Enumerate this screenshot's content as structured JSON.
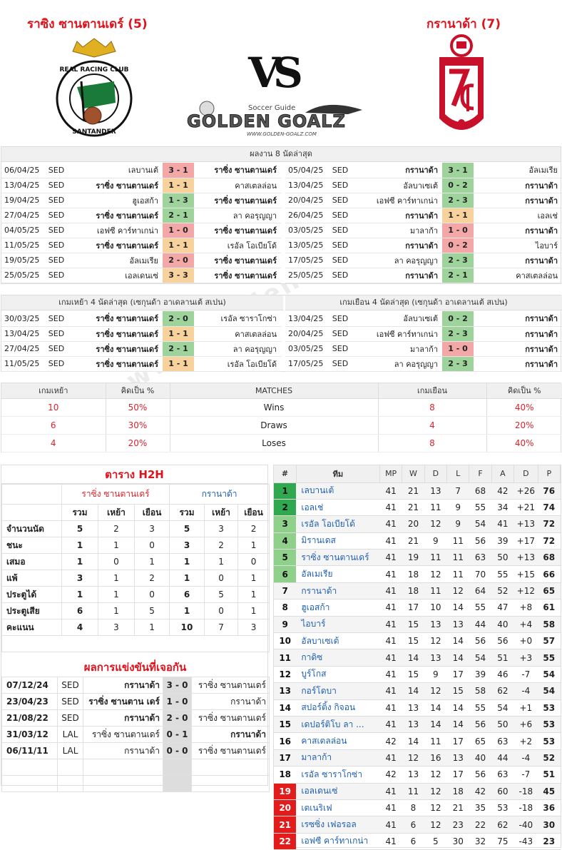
{
  "header": {
    "home": "ราซิง ซานตานเดร์ (5)",
    "away": "กรานาด้า (7)",
    "vs": "VS",
    "logo_small": "Soccer Guide",
    "logo_big": "GOLDEN GOALZ",
    "logo_url": "WWW.GOLDEN-GOALZ.COM",
    "crest_home_text": "REAL RACING CLUB",
    "crest_home_sub": "SANTANDER"
  },
  "last8": {
    "title": "ผลงาน 8 นัดล่าสุด",
    "home": [
      {
        "d": "06/04/25",
        "c": "SED",
        "h": "เลบานเต้",
        "s": "3 - 1",
        "a": "ราซิ่ง ซานตานเดร์",
        "hb": false,
        "ab": true,
        "cl": "r"
      },
      {
        "d": "13/04/25",
        "c": "SED",
        "h": "ราซิ่ง ซานตานเดร์",
        "s": "1 - 1",
        "a": "คาสเตลล่อน",
        "hb": true,
        "ab": false,
        "cl": "o"
      },
      {
        "d": "19/04/25",
        "c": "SED",
        "h": "ฮูเอสก้า",
        "s": "1 - 3",
        "a": "ราซิ่ง ซานตานเดร์",
        "hb": false,
        "ab": true,
        "cl": "g"
      },
      {
        "d": "27/04/25",
        "c": "SED",
        "h": "ราซิ่ง ซานตานเดร์",
        "s": "2 - 1",
        "a": "ลา คอรุญญา",
        "hb": true,
        "ab": false,
        "cl": "g"
      },
      {
        "d": "04/05/25",
        "c": "SED",
        "h": "เอฟซี คาร์ทาเกน่า",
        "s": "1 - 0",
        "a": "ราซิ่ง ซานตานเดร์",
        "hb": false,
        "ab": true,
        "cl": "r"
      },
      {
        "d": "11/05/25",
        "c": "SED",
        "h": "ราซิ่ง ซานตานเดร์",
        "s": "1 - 1",
        "a": "เรอัล โอเบียโด้",
        "hb": true,
        "ab": false,
        "cl": "o"
      },
      {
        "d": "19/05/25",
        "c": "SED",
        "h": "อัลเมเรีย",
        "s": "2 - 0",
        "a": "ราซิ่ง ซานตานเดร์",
        "hb": false,
        "ab": true,
        "cl": "r"
      },
      {
        "d": "25/05/25",
        "c": "SED",
        "h": "เอลเดนเซ่",
        "s": "3 - 3",
        "a": "ราซิ่ง ซานตานเดร์",
        "hb": false,
        "ab": true,
        "cl": "o"
      }
    ],
    "away": [
      {
        "d": "05/04/25",
        "c": "SED",
        "h": "กรานาด้า",
        "s": "3 - 1",
        "a": "อัลเมเรีย",
        "hb": true,
        "ab": false,
        "cl": "g"
      },
      {
        "d": "13/04/25",
        "c": "SED",
        "h": "อัลบาเซเต้",
        "s": "0 - 2",
        "a": "กรานาด้า",
        "hb": false,
        "ab": true,
        "cl": "g"
      },
      {
        "d": "20/04/25",
        "c": "SED",
        "h": "เอฟซี คาร์ทาเกน่า",
        "s": "2 - 3",
        "a": "กรานาด้า",
        "hb": false,
        "ab": true,
        "cl": "g"
      },
      {
        "d": "26/04/25",
        "c": "SED",
        "h": "กรานาด้า",
        "s": "1 - 1",
        "a": "เอลเช่",
        "hb": true,
        "ab": false,
        "cl": "o"
      },
      {
        "d": "03/05/25",
        "c": "SED",
        "h": "มาลาก้า",
        "s": "1 - 0",
        "a": "กรานาด้า",
        "hb": false,
        "ab": true,
        "cl": "r"
      },
      {
        "d": "13/05/25",
        "c": "SED",
        "h": "กรานาด้า",
        "s": "0 - 2",
        "a": "ไอบาร์",
        "hb": true,
        "ab": false,
        "cl": "r"
      },
      {
        "d": "17/05/25",
        "c": "SED",
        "h": "ลา คอรุญญา",
        "s": "2 - 3",
        "a": "กรานาด้า",
        "hb": false,
        "ab": true,
        "cl": "g"
      },
      {
        "d": "25/05/25",
        "c": "SED",
        "h": "กรานาด้า",
        "s": "2 - 1",
        "a": "คาสเตลล่อน",
        "hb": true,
        "ab": false,
        "cl": "g"
      }
    ]
  },
  "last4": {
    "home_title": "เกมเหย้า 4 นัดล่าสุด (เซกุนด้า อาเดลานเต้ สเปน)",
    "away_title": "เกมเยือน 4 นัดล่าสุด (เซกุนด้า อาเดลานเต้ สเปน)",
    "home": [
      {
        "d": "30/03/25",
        "c": "SED",
        "h": "ราซิ่ง ซานตานเดร์",
        "s": "2 - 0",
        "a": "เรอัล ซาราโกซ่า",
        "cl": "g"
      },
      {
        "d": "13/04/25",
        "c": "SED",
        "h": "ราซิ่ง ซานตานเดร์",
        "s": "1 - 1",
        "a": "คาสเตลล่อน",
        "cl": "o"
      },
      {
        "d": "27/04/25",
        "c": "SED",
        "h": "ราซิ่ง ซานตานเดร์",
        "s": "2 - 1",
        "a": "ลา คอรุญญา",
        "cl": "g"
      },
      {
        "d": "11/05/25",
        "c": "SED",
        "h": "ราซิ่ง ซานตานเดร์",
        "s": "1 - 1",
        "a": "เรอัล โอเบียโด้",
        "cl": "o"
      }
    ],
    "away": [
      {
        "d": "13/04/25",
        "c": "SED",
        "h": "อัลบาเซเต้",
        "s": "0 - 2",
        "a": "กรานาด้า",
        "cl": "g"
      },
      {
        "d": "20/04/25",
        "c": "SED",
        "h": "เอฟซี คาร์ทาเกน่า",
        "s": "2 - 3",
        "a": "กรานาด้า",
        "cl": "g"
      },
      {
        "d": "03/05/25",
        "c": "SED",
        "h": "มาลาก้า",
        "s": "1 - 0",
        "a": "กรานาด้า",
        "cl": "r"
      },
      {
        "d": "17/05/25",
        "c": "SED",
        "h": "ลา คอรุญญา",
        "s": "2 - 3",
        "a": "กรานาด้า",
        "cl": "g"
      }
    ]
  },
  "stats": {
    "h1": "เกมเหย้า",
    "h2": "คิดเป็น %",
    "h3": "MATCHES",
    "h4": "เกมเยือน",
    "h5": "คิดเป็น %",
    "rows": [
      {
        "hv": "10",
        "hp": "50%",
        "label": "Wins",
        "av": "8",
        "ap": "40%"
      },
      {
        "hv": "6",
        "hp": "30%",
        "label": "Draws",
        "av": "4",
        "ap": "20%"
      },
      {
        "hv": "4",
        "hp": "20%",
        "label": "Loses",
        "av": "8",
        "ap": "40%"
      }
    ]
  },
  "h2h": {
    "title": "ตาราง H2H",
    "home": "ราซิ่ง ซานตานเดร์",
    "away": "กรานาด้า",
    "cols": [
      "รวม",
      "เหย้า",
      "เยือน",
      "รวม",
      "เหย้า",
      "เยือน"
    ],
    "rows": [
      {
        "l": "จำนวนนัด",
        "v": [
          "5",
          "2",
          "3",
          "5",
          "3",
          "2"
        ]
      },
      {
        "l": "ชนะ",
        "v": [
          "1",
          "1",
          "0",
          "3",
          "2",
          "1"
        ]
      },
      {
        "l": "เสมอ",
        "v": [
          "1",
          "0",
          "1",
          "1",
          "1",
          "0"
        ]
      },
      {
        "l": "แพ้",
        "v": [
          "3",
          "1",
          "2",
          "1",
          "0",
          "1"
        ]
      },
      {
        "l": "ประตูได้",
        "v": [
          "1",
          "1",
          "0",
          "6",
          "5",
          "1"
        ]
      },
      {
        "l": "ประตูเสีย",
        "v": [
          "6",
          "1",
          "5",
          "1",
          "0",
          "1"
        ]
      },
      {
        "l": "คะแนน",
        "v": [
          "4",
          "3",
          "1",
          "10",
          "7",
          "3"
        ]
      }
    ]
  },
  "results": {
    "title": "ผลการแข่งขันที่เจอกัน",
    "rows": [
      {
        "d": "07/12/24",
        "c": "SED",
        "h": "กรานาด้า",
        "s": "3 - 0",
        "a": "ราซิ่ง ซานตานเดร์",
        "hb": true,
        "ab": false
      },
      {
        "d": "23/04/23",
        "c": "SED",
        "h": "ราซิ่ง ซานตาน เดร์",
        "s": "1 - 0",
        "a": "กรานาด้า",
        "hb": true,
        "ab": false
      },
      {
        "d": "21/08/22",
        "c": "SED",
        "h": "กรานาด้า",
        "s": "2 - 0",
        "a": "ราซิ่ง ซานตานเดร์",
        "hb": true,
        "ab": false
      },
      {
        "d": "31/03/12",
        "c": "LAL",
        "h": "ราซิ่ง ซานตานเดร์",
        "s": "0 - 1",
        "a": "กรานาด้า",
        "hb": false,
        "ab": true
      },
      {
        "d": "06/11/11",
        "c": "LAL",
        "h": "กรานาด้า",
        "s": "0 - 0",
        "a": "ราซิ่ง ซานตานเดร์",
        "hb": false,
        "ab": false
      }
    ]
  },
  "league": {
    "cols": [
      "#",
      "ทีม",
      "MP",
      "W",
      "D",
      "L",
      "F",
      "A",
      "D",
      "P"
    ],
    "rows": [
      {
        "p": "1",
        "t": "เลบานเต้",
        "v": [
          "41",
          "21",
          "13",
          "7",
          "68",
          "42",
          "+26",
          "76"
        ],
        "z": "g"
      },
      {
        "p": "2",
        "t": "เอลเช่",
        "v": [
          "41",
          "21",
          "11",
          "9",
          "55",
          "34",
          "+21",
          "74"
        ],
        "z": "g"
      },
      {
        "p": "3",
        "t": "เรอัล โอเบียโด้",
        "v": [
          "41",
          "20",
          "12",
          "9",
          "54",
          "41",
          "+13",
          "72"
        ],
        "z": "lg"
      },
      {
        "p": "4",
        "t": "มิรานเดส",
        "v": [
          "41",
          "21",
          "9",
          "11",
          "56",
          "39",
          "+17",
          "72"
        ],
        "z": "lg"
      },
      {
        "p": "5",
        "t": "ราซิ่ง ซานตานเดร์",
        "v": [
          "41",
          "19",
          "11",
          "11",
          "63",
          "50",
          "+13",
          "68"
        ],
        "z": "lg"
      },
      {
        "p": "6",
        "t": "อัลเมเรีย",
        "v": [
          "41",
          "18",
          "12",
          "11",
          "70",
          "55",
          "+15",
          "66"
        ],
        "z": "lg"
      },
      {
        "p": "7",
        "t": "กรานาด้า",
        "v": [
          "41",
          "18",
          "11",
          "12",
          "64",
          "52",
          "+12",
          "65"
        ],
        "z": ""
      },
      {
        "p": "8",
        "t": "ฮูเอสก้า",
        "v": [
          "41",
          "17",
          "10",
          "14",
          "55",
          "47",
          "+8",
          "61"
        ],
        "z": ""
      },
      {
        "p": "9",
        "t": "ไอบาร์",
        "v": [
          "41",
          "15",
          "13",
          "13",
          "44",
          "40",
          "+4",
          "58"
        ],
        "z": ""
      },
      {
        "p": "10",
        "t": "อัลบาเซเต้",
        "v": [
          "41",
          "15",
          "12",
          "14",
          "56",
          "56",
          "+0",
          "57"
        ],
        "z": ""
      },
      {
        "p": "11",
        "t": "กาดิซ",
        "v": [
          "41",
          "14",
          "13",
          "14",
          "54",
          "51",
          "+3",
          "55"
        ],
        "z": ""
      },
      {
        "p": "12",
        "t": "บูร์โกส",
        "v": [
          "41",
          "15",
          "9",
          "17",
          "39",
          "46",
          "-7",
          "54"
        ],
        "z": ""
      },
      {
        "p": "13",
        "t": "กอร์โดบา",
        "v": [
          "41",
          "14",
          "12",
          "15",
          "58",
          "62",
          "-4",
          "54"
        ],
        "z": ""
      },
      {
        "p": "14",
        "t": "สปอร์ติ้ง กิจอน",
        "v": [
          "41",
          "13",
          "14",
          "14",
          "55",
          "54",
          "+1",
          "53"
        ],
        "z": ""
      },
      {
        "p": "15",
        "t": "เดปอร์ติโบ ลา ...",
        "v": [
          "41",
          "13",
          "14",
          "14",
          "56",
          "50",
          "+6",
          "53"
        ],
        "z": ""
      },
      {
        "p": "16",
        "t": "คาสเตลล่อน",
        "v": [
          "42",
          "14",
          "11",
          "17",
          "65",
          "63",
          "+2",
          "53"
        ],
        "z": ""
      },
      {
        "p": "17",
        "t": "มาลาก้า",
        "v": [
          "41",
          "12",
          "16",
          "13",
          "40",
          "44",
          "-4",
          "52"
        ],
        "z": ""
      },
      {
        "p": "18",
        "t": "เรอัล ซาราโกซ่า",
        "v": [
          "42",
          "13",
          "12",
          "17",
          "56",
          "63",
          "-7",
          "51"
        ],
        "z": ""
      },
      {
        "p": "19",
        "t": "เอลเดนเซ่",
        "v": [
          "41",
          "11",
          "12",
          "18",
          "42",
          "60",
          "-18",
          "45"
        ],
        "z": "r"
      },
      {
        "p": "20",
        "t": "เตเนริเฟ",
        "v": [
          "41",
          "8",
          "12",
          "21",
          "35",
          "53",
          "-18",
          "36"
        ],
        "z": "r"
      },
      {
        "p": "21",
        "t": "เรซซิ่ง เฟอรอล",
        "v": [
          "41",
          "6",
          "12",
          "23",
          "22",
          "62",
          "-40",
          "30"
        ],
        "z": "r"
      },
      {
        "p": "22",
        "t": "เอฟซี คาร์ทาเกน่า",
        "v": [
          "41",
          "6",
          "5",
          "30",
          "32",
          "75",
          "-43",
          "23"
        ],
        "z": "r"
      }
    ]
  },
  "watermark": "www.golden-goalz.net",
  "colors": {
    "accent_red": "#e0121b",
    "win": "#9fd39c",
    "loss": "#f4a7a7",
    "draw": "#f7d29c"
  }
}
